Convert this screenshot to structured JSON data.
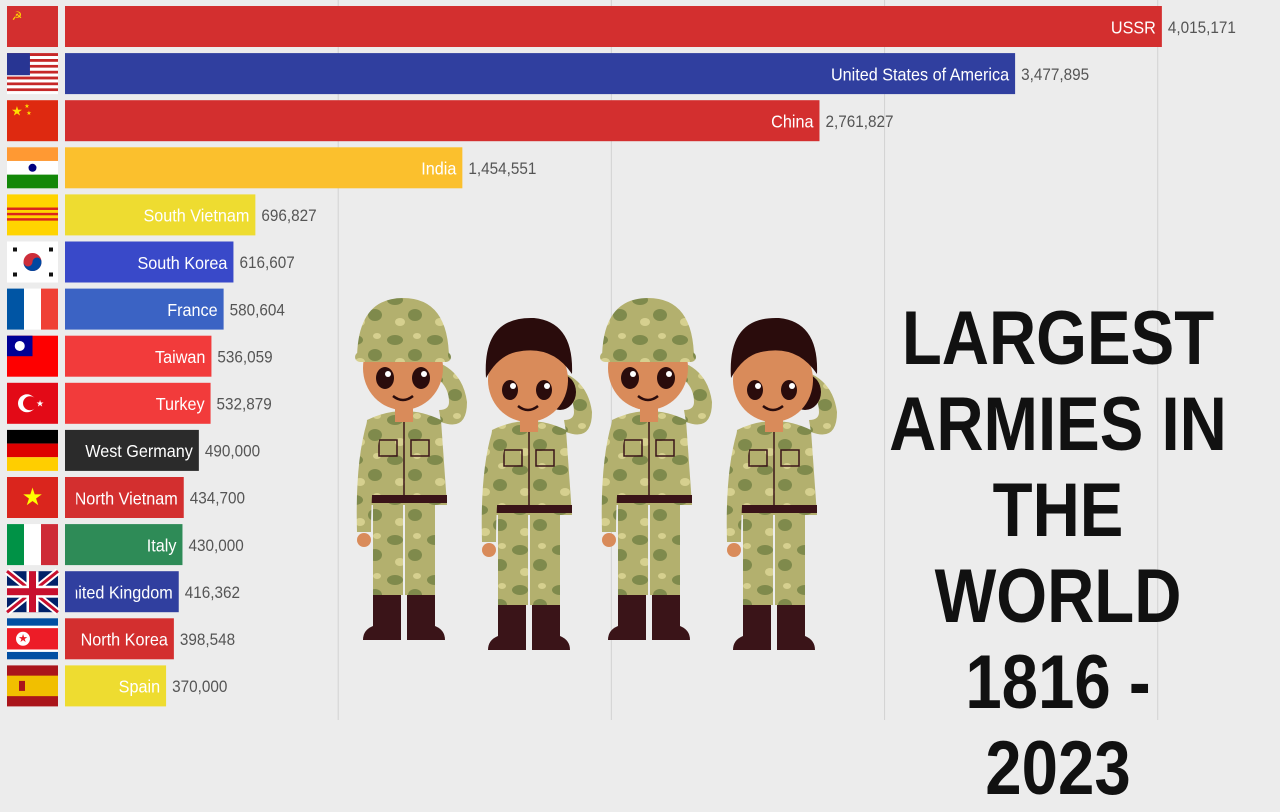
{
  "title_lines": [
    "LARGEST",
    "ARMIES IN",
    "THE WORLD",
    "1816 - 2023"
  ],
  "chart_data": {
    "type": "bar",
    "orientation": "horizontal",
    "title": "LARGEST ARMIES IN THE WORLD 1816 - 2023",
    "xlim": [
      0,
      4400000
    ],
    "grid": true,
    "categories": [
      "USSR",
      "United States of America",
      "China",
      "India",
      "South Vietnam",
      "South Korea",
      "France",
      "Taiwan",
      "Turkey",
      "West Germany",
      "North Vietnam",
      "Italy",
      "United Kingdom",
      "North Korea",
      "Spain"
    ],
    "value_labels": [
      "4,015,171",
      "3,477,895",
      "2,761,827",
      "1,454,551",
      "696,827",
      "616,607",
      "580,604",
      "536,059",
      "532,879",
      "490,000",
      "434,700",
      "430,000",
      "416,362",
      "398,548",
      "370,000"
    ],
    "values": [
      4015171,
      3477895,
      2761827,
      1454551,
      696827,
      616607,
      580604,
      536059,
      532879,
      490000,
      434700,
      430000,
      416362,
      398548,
      370000
    ],
    "colors": [
      "#d32f2f",
      "#303f9f",
      "#d32f2f",
      "#fbc02d",
      "#eedc30",
      "#3949c9",
      "#3b63c4",
      "#f23b3b",
      "#f23b3b",
      "#2b2b2b",
      "#d32f2f",
      "#2e8b57",
      "#303f9f",
      "#d32f2f",
      "#eedc30"
    ],
    "flags": [
      "ussr",
      "usa",
      "china",
      "india",
      "south-vietnam",
      "south-korea",
      "france",
      "taiwan",
      "turkey",
      "west-germany",
      "north-vietnam",
      "italy",
      "united-kingdom",
      "north-korea",
      "spain"
    ]
  },
  "illustration": "four-saluting-soldiers"
}
